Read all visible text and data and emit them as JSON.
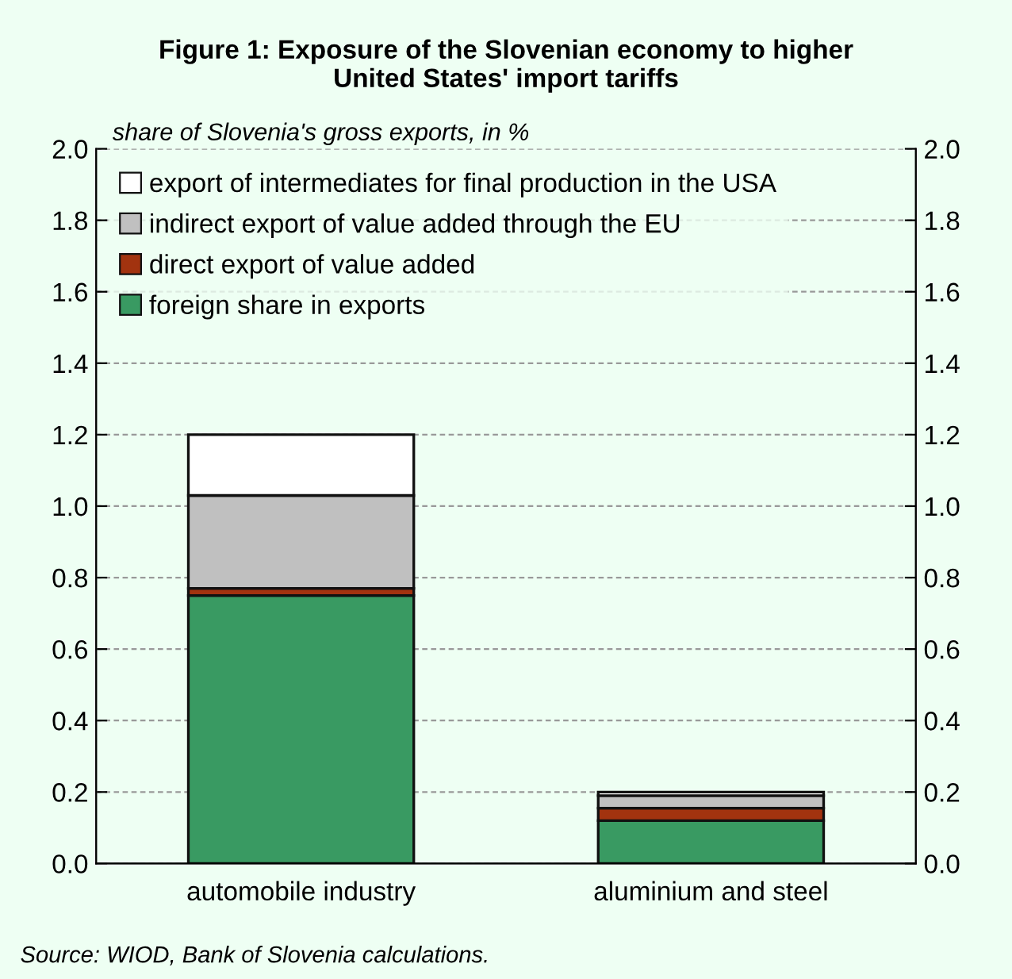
{
  "chart_data": {
    "type": "bar",
    "title": "Figure 1: Exposure of the Slovenian economy to higher\nUnited States' import tariffs",
    "ylabel": "share of Slovenia's gross exports, in %",
    "categories": [
      "automobile industry",
      "aluminium and steel"
    ],
    "stacked": true,
    "series": [
      {
        "name": "foreign share in exports",
        "color": "#399a62",
        "values": [
          0.75,
          0.12
        ]
      },
      {
        "name": "direct export of value added",
        "color": "#a2330f",
        "values": [
          0.02,
          0.035
        ]
      },
      {
        "name": "indirect export of value added through the EU",
        "color": "#c0c0c0",
        "values": [
          0.26,
          0.035
        ]
      },
      {
        "name": "export of intermediates for final production in the USA",
        "color": "#ffffff",
        "values": [
          0.17,
          0.01
        ]
      }
    ],
    "ylim": [
      0,
      2
    ],
    "yticks": [
      {
        "value": 0,
        "label": "0.0"
      },
      {
        "value": 0.2,
        "label": "0.2"
      },
      {
        "value": 0.4,
        "label": "0.4"
      },
      {
        "value": 0.6,
        "label": "0.6"
      },
      {
        "value": 0.8,
        "label": "0.8"
      },
      {
        "value": 1,
        "label": "1.0"
      },
      {
        "value": 1.2,
        "label": "1.2"
      },
      {
        "value": 1.4,
        "label": "1.4"
      },
      {
        "value": 1.6,
        "label": "1.6"
      },
      {
        "value": 1.8,
        "label": "1.8"
      },
      {
        "value": 2,
        "label": "2.0"
      }
    ],
    "y2lim": [
      0,
      2
    ],
    "y2ticks": [
      {
        "value": 0,
        "label": "0.0"
      },
      {
        "value": 0.2,
        "label": "0.2"
      },
      {
        "value": 0.4,
        "label": "0.4"
      },
      {
        "value": 0.6,
        "label": "0.6"
      },
      {
        "value": 0.8,
        "label": "0.8"
      },
      {
        "value": 1,
        "label": "1.0"
      },
      {
        "value": 1.2,
        "label": "1.2"
      },
      {
        "value": 1.4,
        "label": "1.4"
      },
      {
        "value": 1.6,
        "label": "1.6"
      },
      {
        "value": 1.8,
        "label": "1.8"
      },
      {
        "value": 2,
        "label": "2.0"
      }
    ],
    "grid": "y",
    "legend": "top left",
    "annotations": [
      "Source: WIOD, Bank of Slovenia calculations."
    ]
  }
}
